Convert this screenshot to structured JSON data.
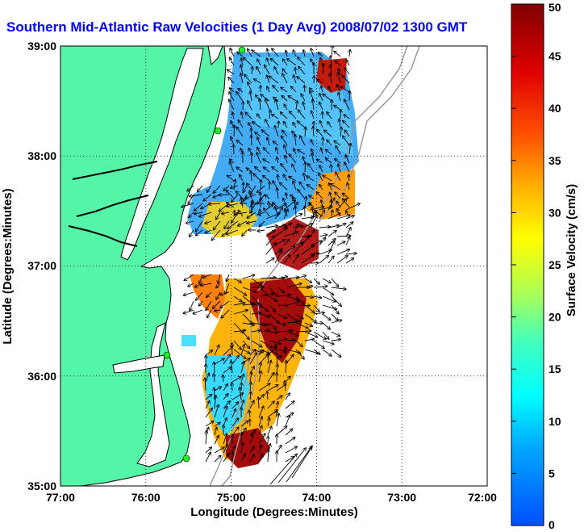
{
  "title": "Southern Mid-Atlantic Raw Velocities (1 Day Avg) 2008/07/02 1300 GMT",
  "x_axis": {
    "label": "Longitude (Degrees:Minutes)",
    "ticks": [
      "77:00",
      "76:00",
      "75:00",
      "74:00",
      "73:00",
      "72:00"
    ]
  },
  "y_axis": {
    "label": "Latitude (Degrees:Minutes)",
    "ticks": [
      "39:00",
      "38:00",
      "37:00",
      "36:00",
      "35:00"
    ]
  },
  "colorbar": {
    "label": "Surface Velocity (cm/s)",
    "ticks": [
      "50",
      "45",
      "40",
      "35",
      "30",
      "25",
      "20",
      "15",
      "10",
      "5",
      "0"
    ],
    "range": [
      0,
      50
    ],
    "colors": [
      "#0040ff",
      "#00a0ff",
      "#00ffff",
      "#40ffc0",
      "#c0ff40",
      "#ffff00",
      "#ffa000",
      "#ff4000",
      "#e00000",
      "#800000"
    ]
  },
  "colors": {
    "land": "#55f5a8",
    "ocean": "#ffffff",
    "title": "#0000ff",
    "station": "#22ee22"
  },
  "chart_data": {
    "type": "heatmap",
    "title": "Southern Mid-Atlantic Raw Velocities (1 Day Avg) 2008/07/02 1300 GMT",
    "xlabel": "Longitude (Degrees:Minutes)",
    "ylabel": "Latitude (Degrees:Minutes)",
    "xlim": [
      -77,
      -72
    ],
    "ylim": [
      35,
      39
    ],
    "colorbar_label": "Surface Velocity (cm/s)",
    "colorbar_range": [
      0,
      50
    ],
    "regions": [
      {
        "lon": [
          -75.0,
          -73.6
        ],
        "lat": [
          37.6,
          38.95
        ],
        "speed": 8
      },
      {
        "lon": [
          -75.5,
          -74.4
        ],
        "lat": [
          37.2,
          37.9
        ],
        "speed": 10
      },
      {
        "lon": [
          -74.1,
          -73.7
        ],
        "lat": [
          38.6,
          38.9
        ],
        "speed": 40
      },
      {
        "lon": [
          -74.6,
          -74.0
        ],
        "lat": [
          37.1,
          37.5
        ],
        "speed": 45
      },
      {
        "lon": [
          -75.6,
          -75.0
        ],
        "lat": [
          36.6,
          37.0
        ],
        "speed": 32
      },
      {
        "lon": [
          -75.1,
          -74.5
        ],
        "lat": [
          36.0,
          36.8
        ],
        "speed": 38
      },
      {
        "lon": [
          -75.2,
          -74.6
        ],
        "lat": [
          35.2,
          36.0
        ],
        "speed": 12
      },
      {
        "lon": [
          -75.1,
          -74.5
        ],
        "lat": [
          35.2,
          35.5
        ],
        "speed": 45
      }
    ],
    "stations": [
      {
        "lon": -74.88,
        "lat": 38.93
      },
      {
        "lon": -75.14,
        "lat": 38.22
      },
      {
        "lon": -75.72,
        "lat": 36.18
      },
      {
        "lon": -75.52,
        "lat": 35.27
      }
    ]
  }
}
